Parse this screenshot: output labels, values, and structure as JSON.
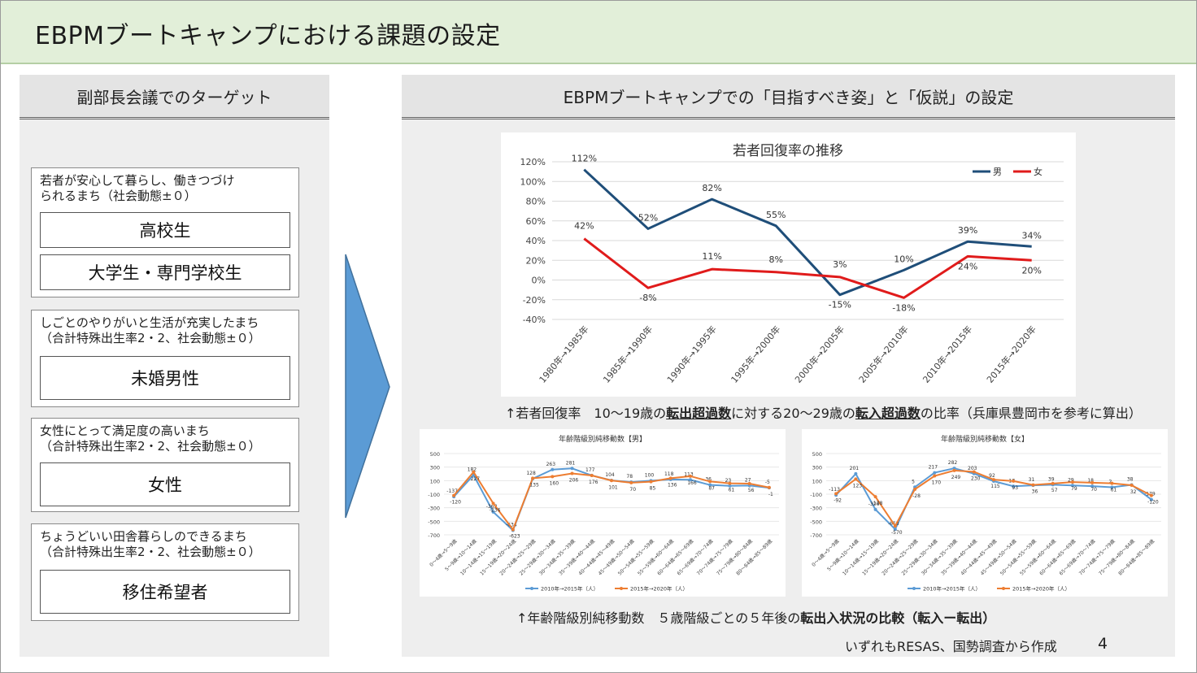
{
  "header": {
    "title": "EBPMブートキャンプにおける課題の設定"
  },
  "left_panel": {
    "title": "副部長会議でのターゲット",
    "groups": [
      {
        "caption": "若者が安心して暮らし、働きつづけ\nられるまち（社会動態±０）",
        "targets": [
          "高校生",
          "大学生・専門学校生"
        ]
      },
      {
        "caption": "しごとのやりがいと生活が充実したまち\n（合計特殊出生率2・2、社会動態±０）",
        "targets": [
          "未婚男性"
        ]
      },
      {
        "caption": "女性にとって満足度の高いまち\n（合計特殊出生率2・2、社会動態±０）",
        "targets": [
          "女性"
        ]
      },
      {
        "caption": "ちょうどいい田舎暮らしのできるまち\n（合計特殊出生率2・2、社会動態±０）",
        "targets": [
          "移住希望者"
        ]
      }
    ]
  },
  "right_panel": {
    "title": "EBPMブートキャンプでの「目指すべき姿」と「仮説」の設定",
    "caption1_parts": [
      "↑若者回復率　10～19歳の",
      "転出超過数",
      "に対する20～29歳の",
      "転入超過数",
      "の比率（兵庫県豊岡市を参考に算出）"
    ],
    "caption2_parts": [
      "↑年齢階級別純移動数　５歳階級ごとの５年後の",
      "転出入状況の比較（転入ー転出）"
    ],
    "source_note": "いずれもRESAS、国勢調査から作成",
    "page_number": "4"
  },
  "colors": {
    "male": "#1f4e79",
    "female": "#e01b1b",
    "s2010": "#5b9bd5",
    "s2015": "#ed7d31",
    "arrow": "#5b9bd5",
    "header_bg": "#e2efd9"
  },
  "chart_data": [
    {
      "type": "line",
      "title": "若者回復率の推移",
      "categories": [
        "1980年→1985年",
        "1985年→1990年",
        "1990年→1995年",
        "1995年→2000年",
        "2000年→2005年",
        "2005年→2010年",
        "2010年→2015年",
        "2015年→2020年"
      ],
      "series": [
        {
          "name": "男",
          "values": [
            112,
            52,
            82,
            55,
            -15,
            10,
            39,
            34
          ],
          "labels": [
            "112%",
            "52%",
            "82%",
            "55%",
            "-15%",
            "10%",
            "39%",
            "34%"
          ]
        },
        {
          "name": "女",
          "values": [
            42,
            -8,
            11,
            8,
            3,
            -18,
            24,
            20
          ],
          "labels": [
            "42%",
            "-8%",
            "11%",
            "8%",
            "3%",
            "-18%",
            "24%",
            "20%"
          ]
        }
      ],
      "yticks": [
        "120%",
        "100%",
        "80%",
        "60%",
        "40%",
        "20%",
        "0%",
        "-20%",
        "-40%"
      ],
      "ylim": [
        -40,
        120
      ],
      "legend": "top-right",
      "grid": true
    },
    {
      "type": "line",
      "title": "年齢階級別純移動数【男】",
      "categories": [
        "0～4歳→5～9歳",
        "5～9歳→10～14歳",
        "10～14歳→15～19歳",
        "15～19歳→20～24歳",
        "20～24歳→25～29歳",
        "25～29歳→30～34歳",
        "30～34歳→35～39歳",
        "35～39歳→40～44歳",
        "40～44歳→45～49歳",
        "45～49歳→50～54歳",
        "50～54歳→55～59歳",
        "55～59歳→60～64歳",
        "60～64歳→65～69歳",
        "65～69歳→70～74歳",
        "70～74歳→75～79歳",
        "75～79歳→80～84歳",
        "80～84歳→85～89歳"
      ],
      "series": [
        {
          "name": "2010年→2015年（人）",
          "values": [
            -137,
            182,
            -363,
            -634,
            128,
            263,
            281,
            177,
            104,
            78,
            100,
            118,
            113,
            36,
            23,
            27,
            -5
          ]
        },
        {
          "name": "2015年→2020年（人）",
          "values": [
            -120,
            227,
            -236,
            -623,
            135,
            160,
            206,
            176,
            101,
            70,
            85,
            136,
            166,
            87,
            61,
            56,
            -1
          ]
        }
      ],
      "yticks": [
        "500",
        "300",
        "100",
        "-100",
        "-300",
        "-500",
        "-700"
      ],
      "ylim": [
        -700,
        500
      ],
      "legend": "bottom"
    },
    {
      "type": "line",
      "title": "年齢階級別純移動数【女】",
      "categories": [
        "0～4歳→5～9歳",
        "5～9歳→10～14歳",
        "10～14歳→15～19歳",
        "15～19歳→20～24歳",
        "20～24歳→25～29歳",
        "25～29歳→30～34歳",
        "30～34歳→35～39歳",
        "35～39歳→40～44歳",
        "40～44歳→45～49歳",
        "45～49歳→50～54歳",
        "50～54歳→55～59歳",
        "55～59歳→60～64歳",
        "60～64歳→65～69歳",
        "65～69歳→70～74歳",
        "70～74歳→75～79歳",
        "75～79歳→80～84歳",
        "80～84歳→85～89歳"
      ],
      "series": [
        {
          "name": "2010年→2015年（人）",
          "values": [
            -113,
            201,
            -326,
            -618,
            5,
            217,
            282,
            203,
            92,
            17,
            31,
            39,
            29,
            18,
            2,
            38,
            -179
          ]
        },
        {
          "name": "2015年→2020年（人）",
          "values": [
            -92,
            123,
            -138,
            -570,
            -28,
            170,
            249,
            230,
            115,
            93,
            36,
            57,
            79,
            70,
            61,
            32,
            -120
          ]
        }
      ],
      "yticks": [
        "500",
        "300",
        "100",
        "-100",
        "-300",
        "-500",
        "-700"
      ],
      "ylim": [
        -700,
        500
      ],
      "legend": "bottom"
    }
  ]
}
